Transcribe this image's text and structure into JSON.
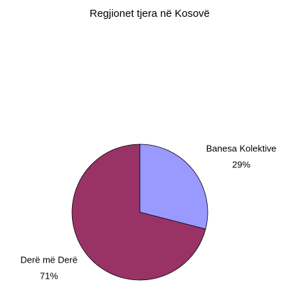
{
  "chart_data": {
    "type": "pie",
    "title": "Regjionet tjera në Kosovë",
    "categories": [
      "Banesa Kolektive",
      "Derë më Derë"
    ],
    "values": [
      29,
      71
    ],
    "value_labels": [
      "29%",
      "71%"
    ],
    "colors": [
      "#9999ff",
      "#993366"
    ]
  }
}
